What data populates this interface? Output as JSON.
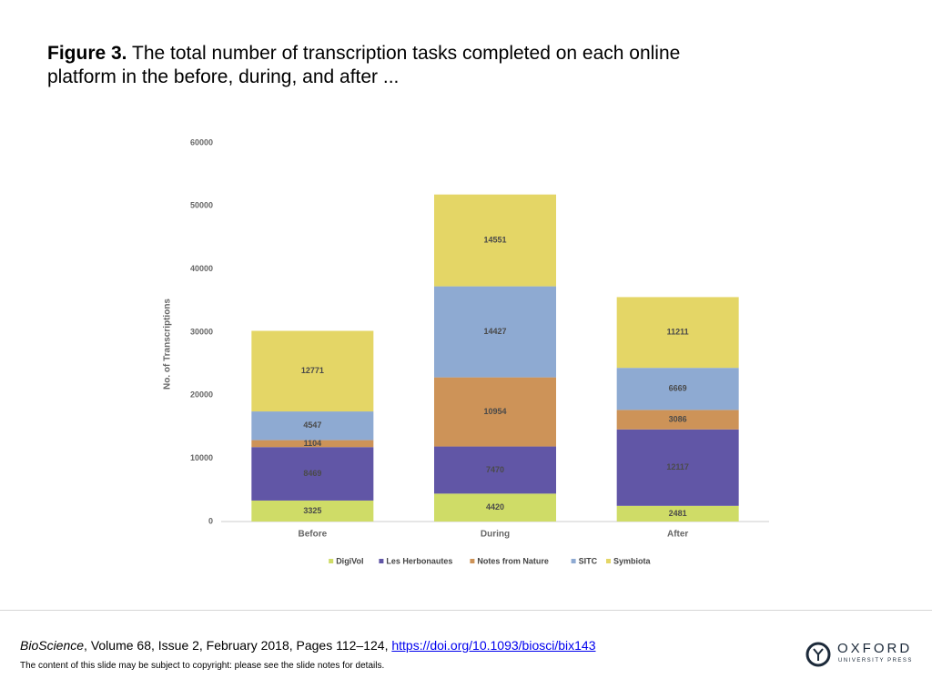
{
  "caption": {
    "label": "Figure 3.",
    "text": " The total number of transcription tasks completed on each online platform in the before, during, and after ..."
  },
  "footer": {
    "journal": "BioScience",
    "details": ", Volume 68, Issue 2, February 2018, Pages 112–124, ",
    "doi_link": "https://doi.org/10.1093/biosci/bix143",
    "notice": "The content of this slide may be subject to copyright: please see the slide notes for details.",
    "logo_name": "OXFORD",
    "logo_sub": "UNIVERSITY PRESS",
    "logo_icon": "oxford-ox-icon"
  },
  "chart_data": {
    "type": "bar",
    "stacked": true,
    "ylabel": "No. of Transcriptions",
    "ylim": [
      0,
      60000
    ],
    "yticks": [
      "0",
      "10000",
      "20000",
      "30000",
      "40000",
      "50000",
      "60000"
    ],
    "categories": [
      "Before",
      "During",
      "After"
    ],
    "series": [
      {
        "name": "DigiVol",
        "color": "#cfdc67",
        "values": [
          3325,
          4420,
          2481
        ]
      },
      {
        "name": "Les Herbonautes",
        "color": "#6156a6",
        "values": [
          8469,
          7470,
          12117
        ]
      },
      {
        "name": "Notes from Nature",
        "color": "#cd9358",
        "values": [
          1104,
          10954,
          3086
        ]
      },
      {
        "name": "SITC",
        "color": "#8eaad2",
        "values": [
          4547,
          14427,
          6669
        ]
      },
      {
        "name": "Symbiota",
        "color": "#e4d666",
        "values": [
          12771,
          14551,
          11211
        ]
      }
    ],
    "legend_position": "bottom",
    "grid": false
  }
}
